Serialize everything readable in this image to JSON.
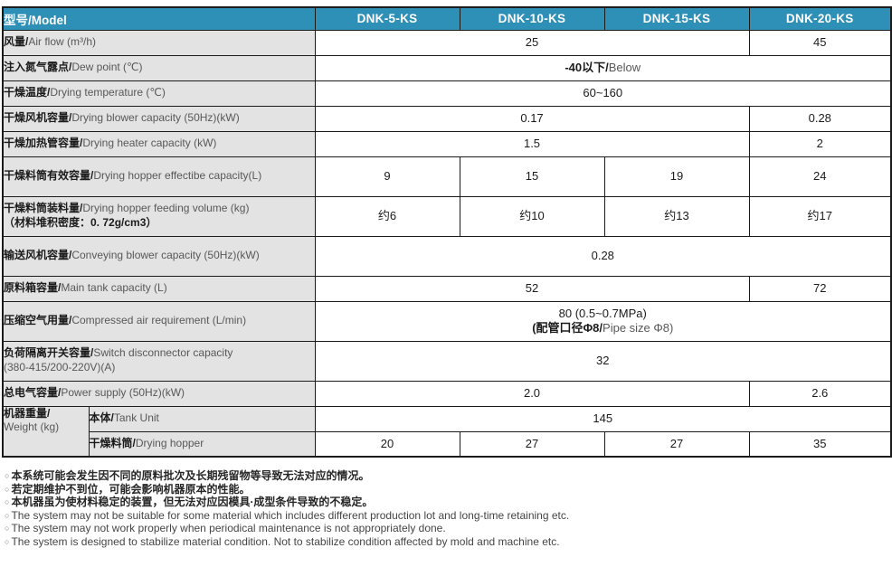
{
  "colors": {
    "header_bg": "#2E8FB7",
    "label_bg": "#E3E3E3",
    "border": "#1B1B1B"
  },
  "header": {
    "label_zh": "型号/",
    "label_en": "Model",
    "models": [
      "DNK-5-KS",
      "DNK-10-KS",
      "DNK-15-KS",
      "DNK-20-KS"
    ]
  },
  "rows": [
    {
      "id": "air-flow",
      "zh": "风量/",
      "en": "Air flow (m³/h)",
      "cells": [
        {
          "t": "25",
          "span": 3
        },
        {
          "t": "45",
          "span": 1
        }
      ]
    },
    {
      "id": "dew-point",
      "zh": "注入氮气露点/",
      "en": "Dew point (℃)",
      "cells": [
        {
          "zh": "-40以下/",
          "en": "Below",
          "span": 4
        }
      ]
    },
    {
      "id": "drying-temperature",
      "zh": "干燥温度/",
      "en": "Drying temperature (℃)",
      "cells": [
        {
          "t": "60~160",
          "span": 4
        }
      ]
    },
    {
      "id": "drying-blower-capacity",
      "zh": "干燥风机容量/",
      "en": "Drying blower capacity (50Hz)(kW)",
      "cells": [
        {
          "t": "0.17",
          "span": 3
        },
        {
          "t": "0.28",
          "span": 1
        }
      ]
    },
    {
      "id": "drying-heater-capacity",
      "zh": "干燥加热管容量/",
      "en": "Drying heater capacity (kW)",
      "cells": [
        {
          "t": "1.5",
          "span": 3
        },
        {
          "t": "2",
          "span": 1
        }
      ]
    },
    {
      "id": "drying-hopper-effective-capacity",
      "zh": "干燥料筒有效容量/",
      "en": "Drying hopper effectibe capacity(L)",
      "cells": [
        {
          "t": "9",
          "span": 1
        },
        {
          "t": "15",
          "span": 1
        },
        {
          "t": "19",
          "span": 1
        },
        {
          "t": "24",
          "span": 1
        }
      ]
    },
    {
      "id": "drying-hopper-feeding-volume",
      "zh": "干燥料筒装料量/",
      "en": "Drying hopper feeding volume (kg)",
      "line2": "（材料堆积密度：0. 72g/cm3）",
      "line2_lang": "zh",
      "cells": [
        {
          "t": "约6",
          "span": 1
        },
        {
          "t": "约10",
          "span": 1
        },
        {
          "t": "约13",
          "span": 1
        },
        {
          "t": "约17",
          "span": 1
        }
      ]
    },
    {
      "id": "conveying-blower-capacity",
      "zh": "输送风机容量/",
      "en": "Conveying blower capacity (50Hz)(kW)",
      "cells": [
        {
          "t": "0.28",
          "span": 4
        }
      ]
    },
    {
      "id": "main-tank-capacity",
      "zh": "原料箱容量/",
      "en": "Main tank capacity (L)",
      "cells": [
        {
          "t": "52",
          "span": 3
        },
        {
          "t": "72",
          "span": 1
        }
      ]
    },
    {
      "id": "compressed-air-requirement",
      "zh": "压缩空气用量/",
      "en": "Compressed air requirement (L/min)",
      "cells": [
        {
          "span": 4,
          "lines": [
            {
              "t": "80 (0.5~0.7MPa)"
            },
            {
              "zh": "(配管口径Φ8/",
              "en": "Pipe size Φ8)"
            }
          ]
        }
      ]
    },
    {
      "id": "switch-disconnector-capacity",
      "zh": "负荷隔离开关容量/",
      "en": "Switch disconnector capacity",
      "line2": "(380-415/200-220V)(A)",
      "line2_lang": "en",
      "cells": [
        {
          "t": "32",
          "span": 4
        }
      ]
    },
    {
      "id": "power-supply",
      "zh": "总电气容量/",
      "en": "Power supply (50Hz)(kW)",
      "cells": [
        {
          "t": "2.0",
          "span": 3
        },
        {
          "t": "2.6",
          "span": 1
        }
      ]
    }
  ],
  "weight": {
    "zh": "机器重量/",
    "en": "Weight (kg)",
    "sub_rows": [
      {
        "id": "tank-unit",
        "zh": "本体/",
        "en": "Tank Unit",
        "cells": [
          {
            "t": "145",
            "span": 4
          }
        ]
      },
      {
        "id": "drying-hopper-weight",
        "zh": "干燥料筒/",
        "en": "Drying hopper",
        "cells": [
          {
            "t": "20",
            "span": 1
          },
          {
            "t": "27",
            "span": 1
          },
          {
            "t": "27",
            "span": 1
          },
          {
            "t": "35",
            "span": 1
          }
        ]
      }
    ]
  },
  "notes": {
    "bullet": "○",
    "items": [
      {
        "lang": "zh",
        "text": "本系统可能会发生因不同的原料批次及长期残留物等导致无法对应的情况。"
      },
      {
        "lang": "zh",
        "text": "若定期维护不到位，可能会影响机器原本的性能。"
      },
      {
        "lang": "zh",
        "text": "本机器虽为使材料稳定的装置，但无法对应因模具·成型条件导致的不稳定。"
      },
      {
        "lang": "en",
        "text": "The system may not be suitable for some material which includes different production lot and long-time retaining etc."
      },
      {
        "lang": "en",
        "text": "The system may not work properly when periodical maintenance is not appropriately done."
      },
      {
        "lang": "en",
        "text": "The system is designed to stabilize material condition. Not to stabilize condition affected by mold and machine etc."
      }
    ]
  }
}
